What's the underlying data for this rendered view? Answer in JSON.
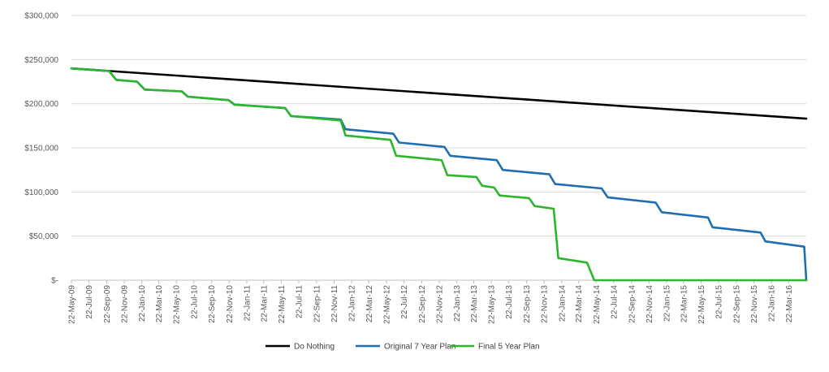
{
  "chart_data": {
    "type": "line",
    "title": "",
    "xlabel": "",
    "ylabel": "",
    "ylim": [
      0,
      300000
    ],
    "yticks": [
      0,
      50000,
      100000,
      150000,
      200000,
      250000,
      300000
    ],
    "ytick_labels": [
      "$-",
      "$50,000",
      "$100,000",
      "$150,000",
      "$200,000",
      "$250,000",
      "$300,000"
    ],
    "xlim": [
      "2009-05-22",
      "2016-05-22"
    ],
    "xtick_labels": [
      "22-May-09",
      "22-Jul-09",
      "22-Sep-09",
      "22-Nov-09",
      "22-Jan-10",
      "22-Mar-10",
      "22-May-10",
      "22-Jul-10",
      "22-Sep-10",
      "22-Nov-10",
      "22-Jan-11",
      "22-Mar-11",
      "22-May-11",
      "22-Jul-11",
      "22-Sep-11",
      "22-Nov-11",
      "22-Jan-12",
      "22-Mar-12",
      "22-May-12",
      "22-Jul-12",
      "22-Sep-12",
      "22-Nov-12",
      "22-Jan-13",
      "22-Mar-13",
      "22-May-13",
      "22-Jul-13",
      "22-Sep-13",
      "22-Nov-13",
      "22-Jan-14",
      "22-Mar-14",
      "22-May-14",
      "22-Jul-14",
      "22-Sep-14",
      "22-Nov-14",
      "22-Jan-15",
      "22-Mar-15",
      "22-May-15",
      "22-Jul-15",
      "22-Sep-15",
      "22-Nov-15",
      "22-Jan-16",
      "22-Mar-16"
    ],
    "grid": true,
    "legend_position": "bottom",
    "series": [
      {
        "name": "Do Nothing",
        "color": "#000000",
        "points": [
          [
            "2009-05-22",
            240000
          ],
          [
            "2016-05-22",
            183000
          ]
        ]
      },
      {
        "name": "Original 7 Year Plan",
        "color": "#1f6fb0",
        "points": [
          [
            "2009-05-22",
            240000
          ],
          [
            "2009-09-30",
            237000
          ],
          [
            "2009-10-25",
            227000
          ],
          [
            "2010-01-05",
            225000
          ],
          [
            "2010-02-01",
            216000
          ],
          [
            "2010-06-10",
            214000
          ],
          [
            "2010-07-01",
            208000
          ],
          [
            "2010-11-20",
            204000
          ],
          [
            "2010-12-10",
            199000
          ],
          [
            "2011-06-05",
            195000
          ],
          [
            "2011-06-25",
            186000
          ],
          [
            "2011-12-15",
            182000
          ],
          [
            "2012-01-01",
            171000
          ],
          [
            "2012-06-15",
            166000
          ],
          [
            "2012-07-05",
            156000
          ],
          [
            "2012-12-10",
            151000
          ],
          [
            "2012-12-30",
            141000
          ],
          [
            "2013-06-10",
            136000
          ],
          [
            "2013-07-01",
            125000
          ],
          [
            "2013-12-10",
            120000
          ],
          [
            "2013-12-30",
            109000
          ],
          [
            "2014-06-10",
            104000
          ],
          [
            "2014-07-01",
            94000
          ],
          [
            "2014-12-15",
            88000
          ],
          [
            "2015-01-05",
            77000
          ],
          [
            "2015-06-15",
            71000
          ],
          [
            "2015-07-01",
            60000
          ],
          [
            "2015-12-15",
            54000
          ],
          [
            "2016-01-01",
            44000
          ],
          [
            "2016-05-15",
            38000
          ],
          [
            "2016-05-22",
            0
          ]
        ]
      },
      {
        "name": "Final 5 Year Plan",
        "color": "#2db52d",
        "points": [
          [
            "2009-05-22",
            240000
          ],
          [
            "2009-09-30",
            237000
          ],
          [
            "2009-10-25",
            227000
          ],
          [
            "2010-01-05",
            225000
          ],
          [
            "2010-02-01",
            216000
          ],
          [
            "2010-06-10",
            214000
          ],
          [
            "2010-07-01",
            208000
          ],
          [
            "2010-11-20",
            204000
          ],
          [
            "2010-12-10",
            199000
          ],
          [
            "2011-06-05",
            195000
          ],
          [
            "2011-06-25",
            186000
          ],
          [
            "2011-12-15",
            181000
          ],
          [
            "2012-01-01",
            164000
          ],
          [
            "2012-06-05",
            159000
          ],
          [
            "2012-06-25",
            141000
          ],
          [
            "2012-11-30",
            136000
          ],
          [
            "2012-12-20",
            119000
          ],
          [
            "2013-03-31",
            117000
          ],
          [
            "2013-04-20",
            107000
          ],
          [
            "2013-06-01",
            105000
          ],
          [
            "2013-06-20",
            96000
          ],
          [
            "2013-09-30",
            93000
          ],
          [
            "2013-10-20",
            84000
          ],
          [
            "2013-12-25",
            81000
          ],
          [
            "2014-01-10",
            25000
          ],
          [
            "2014-04-20",
            20000
          ],
          [
            "2014-05-15",
            0
          ],
          [
            "2016-05-22",
            0
          ]
        ]
      }
    ]
  }
}
